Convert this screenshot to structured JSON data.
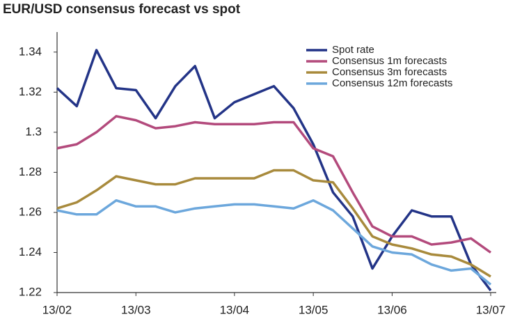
{
  "chart_data": {
    "type": "line",
    "title": "EUR/USD consensus forecast vs spot",
    "categories": [
      "13/02",
      null,
      null,
      null,
      "13/03",
      null,
      null,
      null,
      null,
      "13/04",
      null,
      null,
      null,
      "13/05",
      null,
      null,
      null,
      "13/06",
      null,
      null,
      null,
      null,
      "13/07"
    ],
    "series": [
      {
        "name": "Spot rate",
        "color": "#233487",
        "values": [
          1.322,
          1.313,
          1.341,
          1.322,
          1.321,
          1.307,
          1.323,
          1.333,
          1.307,
          1.315,
          1.319,
          1.323,
          1.312,
          1.294,
          1.27,
          1.258,
          1.232,
          1.248,
          1.261,
          1.258,
          1.258,
          1.234,
          1.221
        ]
      },
      {
        "name": "Consensus 1m forecasts",
        "color": "#b34a7c",
        "values": [
          1.292,
          1.294,
          1.3,
          1.308,
          1.306,
          1.302,
          1.303,
          1.305,
          1.304,
          1.304,
          1.304,
          1.305,
          1.305,
          1.292,
          1.288,
          1.27,
          1.253,
          1.248,
          1.248,
          1.244,
          1.245,
          1.247,
          1.24
        ]
      },
      {
        "name": "Consensus 3m forecasts",
        "color": "#a88a3c",
        "values": [
          1.262,
          1.265,
          1.271,
          1.278,
          1.276,
          1.274,
          1.274,
          1.277,
          1.277,
          1.277,
          1.277,
          1.281,
          1.281,
          1.276,
          1.275,
          1.262,
          1.248,
          1.244,
          1.242,
          1.239,
          1.238,
          1.234,
          1.228
        ]
      },
      {
        "name": "Consensus 12m forecasts",
        "color": "#6ca7dc",
        "values": [
          1.261,
          1.259,
          1.259,
          1.266,
          1.263,
          1.263,
          1.26,
          1.262,
          1.263,
          1.264,
          1.264,
          1.263,
          1.262,
          1.266,
          1.261,
          1.252,
          1.243,
          1.24,
          1.239,
          1.234,
          1.231,
          1.232,
          1.224
        ]
      }
    ],
    "ylim": [
      1.22,
      1.35
    ],
    "yticks": [
      1.22,
      1.24,
      1.26,
      1.28,
      1.3,
      1.32,
      1.34
    ],
    "legend": "upper right",
    "grid": false
  }
}
